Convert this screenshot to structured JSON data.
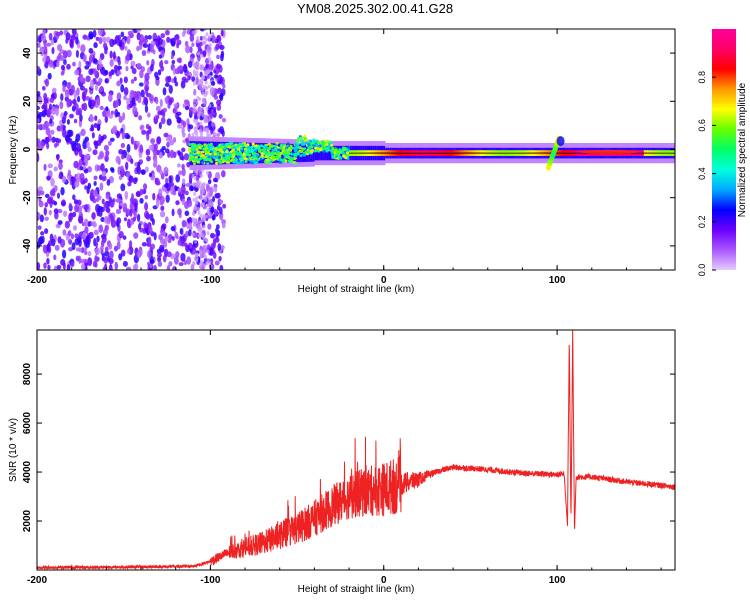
{
  "title": "YM08.2025.302.00.41.G28",
  "chart_data": [
    {
      "type": "heatmap",
      "xlabel": "Height of straight line (km)",
      "ylabel": "Frequency (Hz)",
      "xlim": [
        -200,
        168
      ],
      "ylim": [
        -50,
        50
      ],
      "xticks": [
        -200,
        -100,
        0,
        100
      ],
      "yticks": [
        -40,
        -20,
        0,
        20,
        40
      ],
      "colorbar": {
        "label": "Normalized spectral amplitude",
        "range": [
          0,
          1
        ],
        "ticks": [
          0.0,
          0.2,
          0.4,
          0.6,
          0.8
        ],
        "colors": [
          "#e6ccff",
          "#aa55ff",
          "#6a00ff",
          "#0000ff",
          "#00aaff",
          "#00ffdd",
          "#00ff66",
          "#66ff00",
          "#ffff00",
          "#ff9900",
          "#ff0000",
          "#ff0066",
          "#ff0099"
        ]
      },
      "features": {
        "noise_region_x": [
          -200,
          -100
        ],
        "signal_line_start_x": -110,
        "signal_line_freq": -1.5,
        "disturbance_x": 100
      }
    },
    {
      "type": "line",
      "xlabel": "Height of straight line (km)",
      "ylabel": "SNR (10 * v/v)",
      "xlim": [
        -200,
        168
      ],
      "ylim": [
        0,
        9800
      ],
      "xticks": [
        -200,
        -100,
        0,
        100
      ],
      "yticks": [
        2000,
        4000,
        6000,
        8000
      ],
      "color": "#ee2222",
      "series": [
        {
          "profile": [
            [
              -200,
              100
            ],
            [
              -150,
              120
            ],
            [
              -110,
              150
            ],
            [
              -100,
              350
            ],
            [
              -90,
              700
            ],
            [
              -80,
              900
            ],
            [
              -70,
              1100
            ],
            [
              -60,
              1400
            ],
            [
              -50,
              1700
            ],
            [
              -40,
              2100
            ],
            [
              -30,
              2600
            ],
            [
              -20,
              3000
            ],
            [
              -10,
              3200
            ],
            [
              0,
              3300
            ],
            [
              10,
              3500
            ],
            [
              20,
              3700
            ],
            [
              30,
              4000
            ],
            [
              40,
              4200
            ],
            [
              60,
              4100
            ],
            [
              80,
              3950
            ],
            [
              100,
              3900
            ],
            [
              104,
              3950
            ],
            [
              106,
              1800
            ],
            [
              107,
              9500
            ],
            [
              108,
              2000
            ],
            [
              109,
              9900
            ],
            [
              110,
              1500
            ],
            [
              111,
              3800
            ],
            [
              120,
              3800
            ],
            [
              140,
              3600
            ],
            [
              168,
              3400
            ]
          ]
        }
      ]
    }
  ]
}
